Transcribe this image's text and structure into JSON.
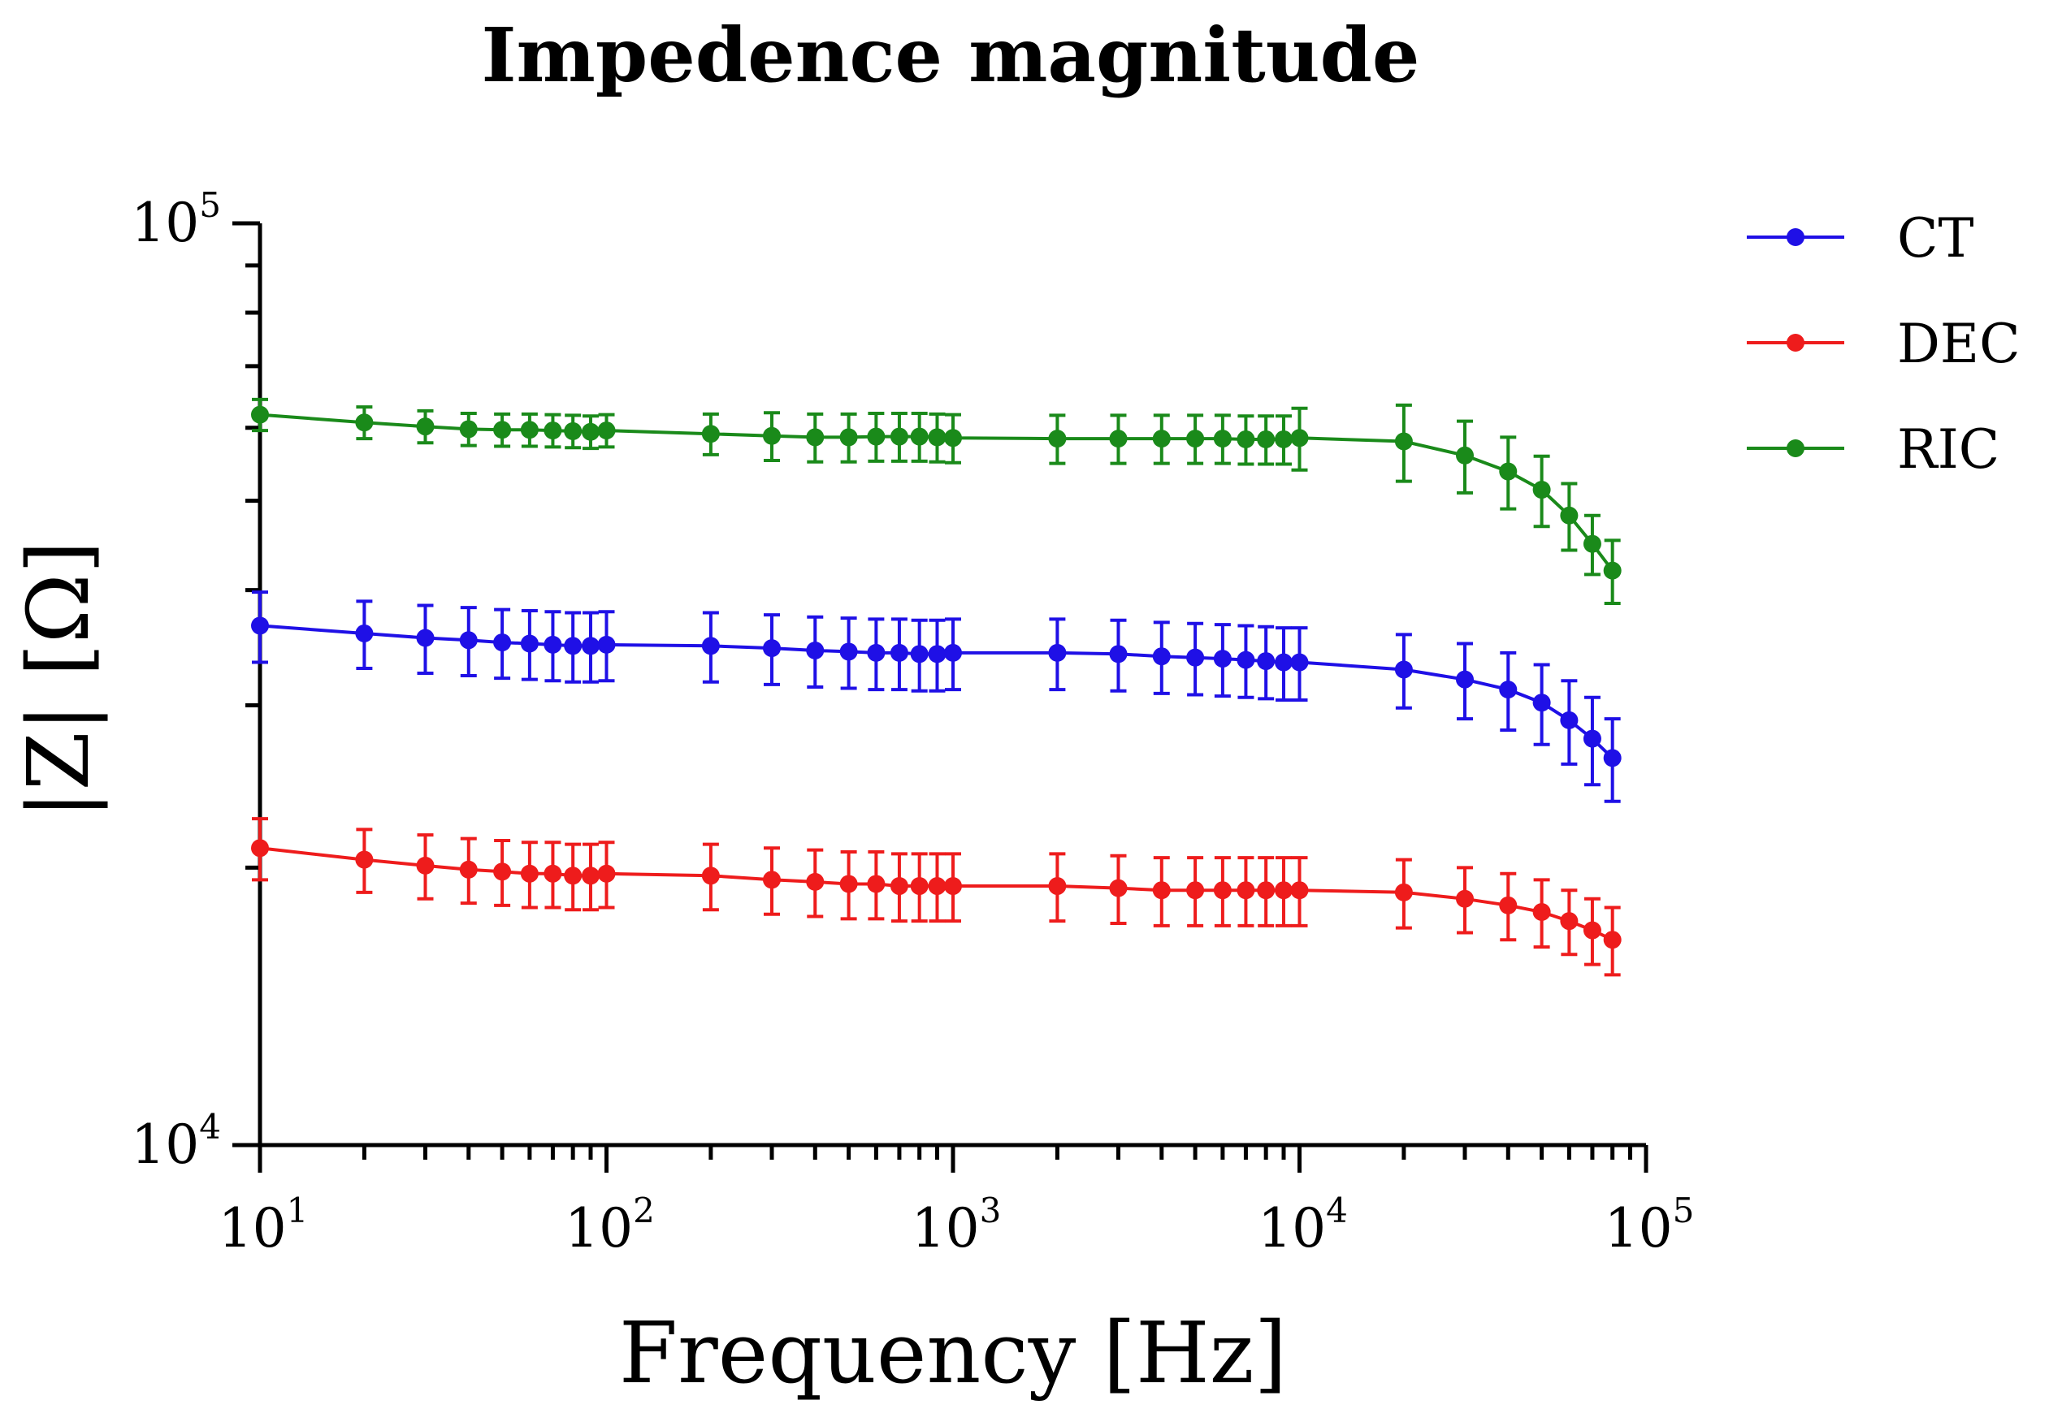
{
  "chart_data": {
    "type": "line",
    "title": "Impedence magnitude",
    "xlabel": "Frequency [Hz]",
    "ylabel": "|Z| [Ω]",
    "xscale": "log",
    "yscale": "log",
    "xlim": [
      10,
      100000
    ],
    "ylim": [
      10000,
      100000
    ],
    "x_ticks": [
      {
        "base": "10",
        "exp": "1"
      },
      {
        "base": "10",
        "exp": "2"
      },
      {
        "base": "10",
        "exp": "3"
      },
      {
        "base": "10",
        "exp": "4"
      },
      {
        "base": "10",
        "exp": "5"
      }
    ],
    "y_ticks": [
      {
        "base": "10",
        "exp": "4"
      },
      {
        "base": "10",
        "exp": "5"
      }
    ],
    "legend_position": "top-right",
    "x": [
      10,
      20,
      30,
      40,
      50,
      60,
      70,
      80,
      90,
      100,
      200,
      300,
      400,
      500,
      600,
      700,
      800,
      900,
      1000,
      2000,
      3000,
      4000,
      5000,
      6000,
      7000,
      8000,
      9000,
      10000,
      20000,
      30000,
      40000,
      50000,
      60000,
      70000,
      80000
    ],
    "series": [
      {
        "name": "CT",
        "color": "#1f10e6",
        "values": [
          36600,
          35900,
          35500,
          35300,
          35100,
          35000,
          34900,
          34800,
          34800,
          34900,
          34800,
          34600,
          34400,
          34300,
          34200,
          34200,
          34100,
          34100,
          34200,
          34200,
          34100,
          33900,
          33800,
          33700,
          33600,
          33500,
          33400,
          33400,
          32800,
          32000,
          31200,
          30200,
          28900,
          27600,
          26300
        ],
        "error": [
          3200,
          3000,
          3000,
          3000,
          3000,
          3000,
          3000,
          3000,
          3000,
          3000,
          3000,
          3000,
          3000,
          3000,
          3000,
          3000,
          3000,
          3000,
          3000,
          3000,
          3000,
          3000,
          3000,
          3000,
          3000,
          3000,
          3000,
          3000,
          3000,
          3000,
          3000,
          3000,
          3000,
          3000,
          2700
        ]
      },
      {
        "name": "DEC",
        "color": "#ee1c1c",
        "values": [
          21000,
          20400,
          20100,
          19900,
          19800,
          19700,
          19700,
          19600,
          19600,
          19700,
          19600,
          19400,
          19300,
          19200,
          19200,
          19100,
          19100,
          19100,
          19100,
          19100,
          19000,
          18900,
          18900,
          18900,
          18900,
          18900,
          18900,
          18900,
          18800,
          18500,
          18200,
          17900,
          17500,
          17100,
          16700
        ],
        "error": [
          1600,
          1600,
          1600,
          1600,
          1600,
          1600,
          1600,
          1600,
          1600,
          1600,
          1600,
          1600,
          1600,
          1600,
          1600,
          1600,
          1600,
          1600,
          1600,
          1600,
          1600,
          1600,
          1600,
          1600,
          1600,
          1600,
          1600,
          1600,
          1600,
          1500,
          1500,
          1500,
          1400,
          1400,
          1400
        ]
      },
      {
        "name": "RIC",
        "color": "#1a8a1a",
        "values": [
          62000,
          60800,
          60200,
          59800,
          59700,
          59700,
          59600,
          59500,
          59400,
          59600,
          59100,
          58800,
          58600,
          58600,
          58700,
          58700,
          58700,
          58600,
          58500,
          58400,
          58400,
          58400,
          58400,
          58400,
          58300,
          58300,
          58300,
          58500,
          58000,
          56000,
          53800,
          51400,
          48200,
          44900,
          42000
        ],
        "error": [
          2400,
          2400,
          2400,
          2400,
          2400,
          2400,
          2400,
          2400,
          2400,
          2400,
          3000,
          3500,
          3500,
          3500,
          3500,
          3500,
          3500,
          3500,
          3500,
          3500,
          3500,
          3500,
          3500,
          3500,
          3500,
          3500,
          3500,
          4500,
          5500,
          5000,
          4800,
          4500,
          4000,
          3300,
          3300
        ]
      }
    ]
  }
}
